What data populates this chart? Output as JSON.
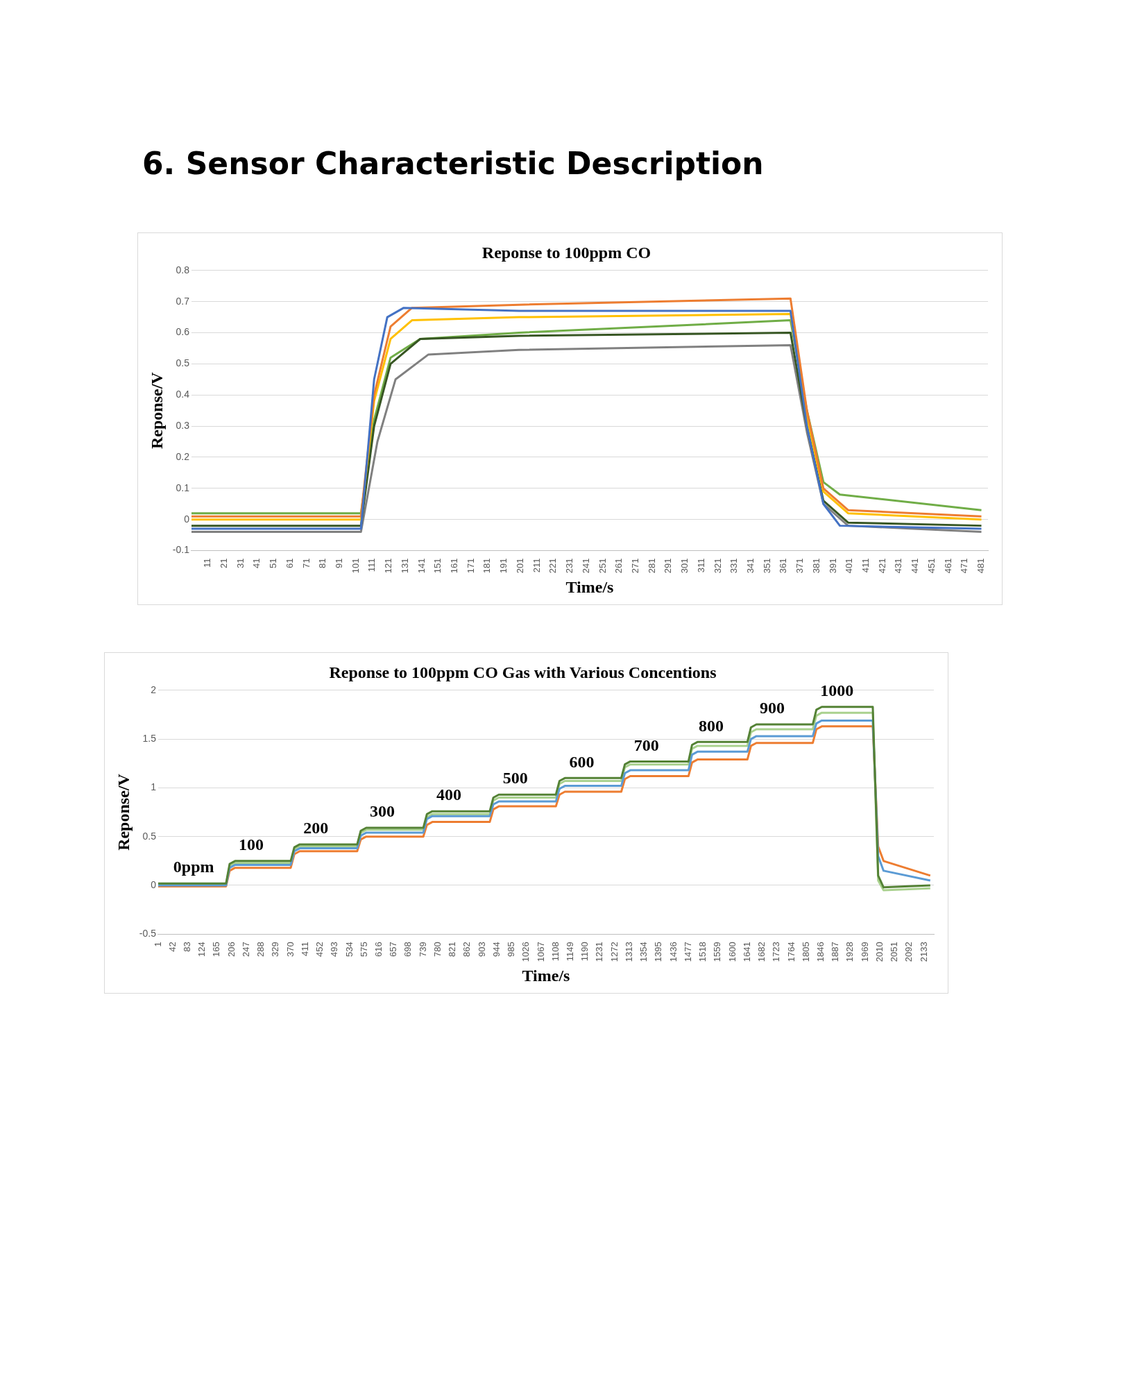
{
  "chart_data": [
    {
      "type": "other",
      "title": "6. Sensor Characteristic Description"
    },
    {
      "type": "line",
      "title": "Reponse to 100ppm CO",
      "xlabel": "Time/s",
      "ylabel": "Reponse/V",
      "legend": false,
      "grid": "y",
      "marker": "none",
      "line_style": "solid",
      "xlim": [
        1,
        485
      ],
      "ylim": [
        -0.1,
        0.8
      ],
      "yticks": [
        -0.1,
        0,
        0.1,
        0.2,
        0.3,
        0.4,
        0.5,
        0.6,
        0.7,
        0.8
      ],
      "xticks": [
        11,
        21,
        31,
        41,
        51,
        61,
        71,
        81,
        91,
        101,
        111,
        121,
        131,
        141,
        151,
        161,
        171,
        181,
        191,
        201,
        211,
        221,
        231,
        241,
        251,
        261,
        271,
        281,
        291,
        301,
        311,
        321,
        331,
        341,
        351,
        361,
        371,
        381,
        391,
        401,
        411,
        421,
        431,
        441,
        451,
        461,
        471,
        481
      ],
      "series": [
        {
          "color": "#4472c4",
          "x": [
            1,
            104,
            112,
            120,
            130,
            200,
            365,
            375,
            385,
            395,
            481
          ],
          "values": [
            -0.03,
            -0.03,
            0.45,
            0.65,
            0.68,
            0.67,
            0.67,
            0.3,
            0.05,
            -0.02,
            -0.03
          ]
        },
        {
          "color": "#ed7d31",
          "x": [
            1,
            104,
            112,
            122,
            135,
            200,
            365,
            375,
            385,
            400,
            481
          ],
          "values": [
            0.01,
            0.01,
            0.4,
            0.62,
            0.68,
            0.69,
            0.71,
            0.35,
            0.1,
            0.03,
            0.01
          ]
        },
        {
          "color": "#ffc000",
          "x": [
            1,
            104,
            112,
            122,
            135,
            200,
            365,
            375,
            385,
            400,
            481
          ],
          "values": [
            0,
            0,
            0.38,
            0.58,
            0.64,
            0.65,
            0.66,
            0.33,
            0.09,
            0.02,
            0
          ]
        },
        {
          "color": "#375623",
          "x": [
            1,
            104,
            112,
            122,
            140,
            200,
            365,
            375,
            385,
            400,
            481
          ],
          "values": [
            -0.02,
            -0.02,
            0.3,
            0.5,
            0.58,
            0.59,
            0.6,
            0.3,
            0.06,
            -0.01,
            -0.02
          ]
        },
        {
          "color": "#808080",
          "x": [
            1,
            104,
            114,
            125,
            145,
            200,
            365,
            375,
            385,
            400,
            481
          ],
          "values": [
            -0.04,
            -0.04,
            0.25,
            0.45,
            0.53,
            0.545,
            0.56,
            0.28,
            0.05,
            -0.02,
            -0.04
          ]
        },
        {
          "color": "#70ad47",
          "x": [
            1,
            104,
            112,
            122,
            140,
            200,
            365,
            375,
            385,
            395,
            481
          ],
          "values": [
            0.02,
            0.02,
            0.32,
            0.52,
            0.58,
            0.6,
            0.64,
            0.35,
            0.12,
            0.08,
            0.03
          ]
        }
      ]
    },
    {
      "type": "line",
      "title": "Reponse to 100ppm CO Gas with Various Concentions",
      "xlabel": "Time/s",
      "ylabel": "Reponse/V",
      "legend": false,
      "grid": "y",
      "marker": "none",
      "line_style": "solid",
      "xlim": [
        1,
        2160
      ],
      "ylim": [
        -0.5,
        2
      ],
      "yticks": [
        -0.5,
        0,
        0.5,
        1,
        1.5,
        2
      ],
      "xticks": [
        1,
        42,
        83,
        124,
        165,
        206,
        247,
        288,
        329,
        370,
        411,
        452,
        493,
        534,
        575,
        616,
        657,
        698,
        739,
        780,
        821,
        862,
        903,
        944,
        985,
        1026,
        1067,
        1108,
        1149,
        1190,
        1231,
        1272,
        1313,
        1354,
        1395,
        1436,
        1477,
        1518,
        1559,
        1600,
        1641,
        1682,
        1723,
        1764,
        1805,
        1846,
        1887,
        1928,
        1969,
        2010,
        2051,
        2092,
        2133
      ],
      "annotations": [
        {
          "text": "0ppm",
          "x": 100,
          "y": 0.02
        },
        {
          "text": "100",
          "x": 260,
          "y": 0.25
        },
        {
          "text": "200",
          "x": 440,
          "y": 0.42
        },
        {
          "text": "300",
          "x": 625,
          "y": 0.59
        },
        {
          "text": "400",
          "x": 810,
          "y": 0.76
        },
        {
          "text": "500",
          "x": 995,
          "y": 0.93
        },
        {
          "text": "600",
          "x": 1180,
          "y": 1.1
        },
        {
          "text": "700",
          "x": 1360,
          "y": 1.27
        },
        {
          "text": "800",
          "x": 1540,
          "y": 1.47
        },
        {
          "text": "900",
          "x": 1710,
          "y": 1.65
        },
        {
          "text": "1000",
          "x": 1890,
          "y": 1.83
        }
      ],
      "series": [
        {
          "color": "#548235",
          "x": [
            1,
            190,
            200,
            215,
            370,
            380,
            395,
            555,
            565,
            580,
            739,
            749,
            764,
            924,
            934,
            949,
            1108,
            1118,
            1133,
            1290,
            1300,
            1315,
            1477,
            1487,
            1502,
            1641,
            1651,
            1666,
            1823,
            1833,
            1848,
            1990,
            2005,
            2020,
            2150
          ],
          "values": [
            0.02,
            0.02,
            0.22,
            0.25,
            0.25,
            0.39,
            0.42,
            0.42,
            0.56,
            0.59,
            0.59,
            0.73,
            0.76,
            0.76,
            0.9,
            0.93,
            0.93,
            1.07,
            1.1,
            1.1,
            1.24,
            1.27,
            1.27,
            1.44,
            1.47,
            1.47,
            1.62,
            1.65,
            1.65,
            1.8,
            1.83,
            1.83,
            0.1,
            -0.02,
            0
          ]
        },
        {
          "color": "#5b9bd5",
          "x": [
            1,
            190,
            200,
            215,
            370,
            380,
            395,
            555,
            565,
            580,
            739,
            749,
            764,
            924,
            934,
            949,
            1108,
            1118,
            1133,
            1290,
            1300,
            1315,
            1477,
            1487,
            1502,
            1641,
            1651,
            1666,
            1823,
            1833,
            1848,
            1990,
            2005,
            2020,
            2150
          ],
          "values": [
            0,
            0,
            0.18,
            0.21,
            0.21,
            0.35,
            0.38,
            0.38,
            0.51,
            0.54,
            0.54,
            0.68,
            0.71,
            0.71,
            0.83,
            0.86,
            0.86,
            0.99,
            1.02,
            1.02,
            1.15,
            1.18,
            1.18,
            1.34,
            1.37,
            1.37,
            1.5,
            1.53,
            1.53,
            1.66,
            1.69,
            1.69,
            0.3,
            0.15,
            0.05
          ]
        },
        {
          "color": "#ed7d31",
          "x": [
            1,
            190,
            200,
            215,
            370,
            380,
            395,
            555,
            565,
            580,
            739,
            749,
            764,
            924,
            934,
            949,
            1108,
            1118,
            1133,
            1290,
            1300,
            1315,
            1477,
            1487,
            1502,
            1641,
            1651,
            1666,
            1823,
            1833,
            1848,
            1990,
            2005,
            2020,
            2150
          ],
          "values": [
            -0.01,
            -0.01,
            0.15,
            0.18,
            0.18,
            0.32,
            0.35,
            0.35,
            0.47,
            0.5,
            0.5,
            0.62,
            0.65,
            0.65,
            0.78,
            0.81,
            0.81,
            0.93,
            0.96,
            0.96,
            1.09,
            1.12,
            1.12,
            1.26,
            1.29,
            1.29,
            1.43,
            1.46,
            1.46,
            1.6,
            1.63,
            1.63,
            0.4,
            0.25,
            0.1
          ]
        },
        {
          "color": "#a9d18e",
          "x": [
            1,
            190,
            200,
            215,
            370,
            380,
            395,
            555,
            565,
            580,
            739,
            749,
            764,
            924,
            934,
            949,
            1108,
            1118,
            1133,
            1290,
            1300,
            1315,
            1477,
            1487,
            1502,
            1641,
            1651,
            1666,
            1823,
            1833,
            1848,
            1990,
            2005,
            2020,
            2150
          ],
          "values": [
            0.01,
            0.01,
            0.2,
            0.23,
            0.23,
            0.37,
            0.4,
            0.4,
            0.54,
            0.57,
            0.57,
            0.7,
            0.73,
            0.73,
            0.87,
            0.9,
            0.9,
            1.04,
            1.07,
            1.07,
            1.21,
            1.24,
            1.24,
            1.4,
            1.43,
            1.43,
            1.57,
            1.6,
            1.6,
            1.74,
            1.77,
            1.77,
            0.05,
            -0.05,
            -0.03
          ]
        }
      ]
    }
  ]
}
